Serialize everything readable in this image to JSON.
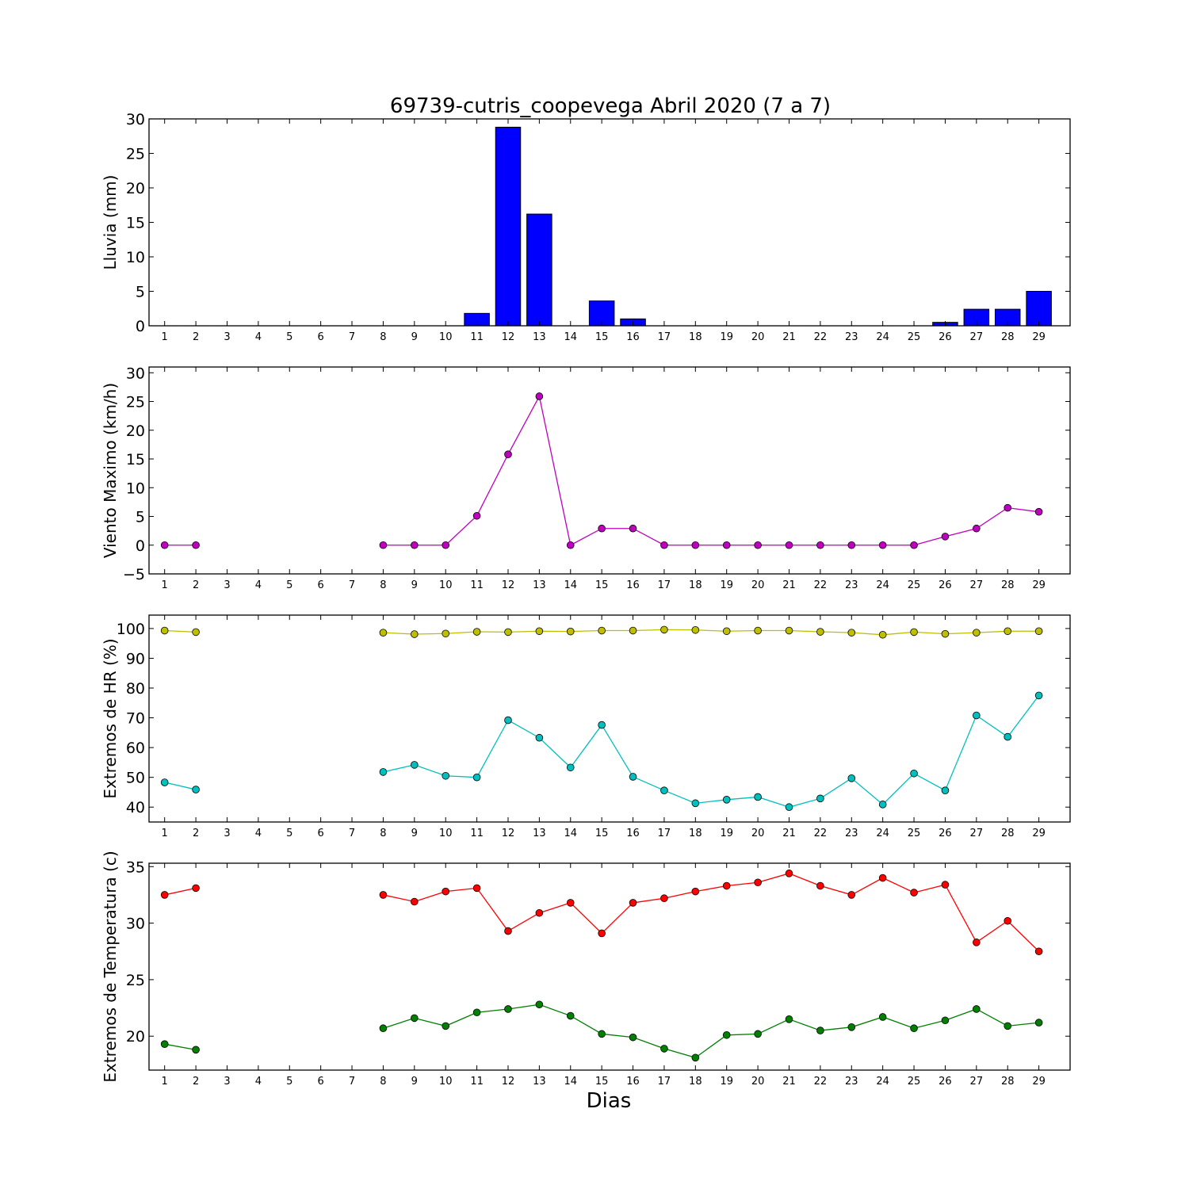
{
  "title": "69739-cutris_coopevega Abril 2020  (7 a 7)",
  "xlabel": "Dias",
  "chart_data": [
    {
      "type": "bar",
      "ylabel": "Lluvia (mm)",
      "ylim": [
        0,
        30
      ],
      "yticks": [
        0,
        5,
        10,
        15,
        20,
        25,
        30
      ],
      "categories": [
        1,
        2,
        3,
        4,
        5,
        6,
        7,
        8,
        9,
        10,
        11,
        12,
        13,
        14,
        15,
        16,
        17,
        18,
        19,
        20,
        21,
        22,
        23,
        24,
        25,
        26,
        27,
        28,
        29
      ],
      "series": [
        {
          "color": "#0000ff",
          "values": [
            0,
            0,
            0,
            0,
            0,
            0,
            0,
            0,
            0,
            0,
            1.8,
            28.8,
            16.2,
            0,
            3.6,
            1.0,
            0,
            0,
            0,
            0,
            0,
            0,
            0,
            0,
            0,
            0.5,
            2.4,
            2.4,
            5.0
          ]
        }
      ]
    },
    {
      "type": "line",
      "ylabel": "Viento Maximo (km/h)",
      "ylim": [
        -5,
        31
      ],
      "yticks": [
        -5,
        0,
        5,
        10,
        15,
        20,
        25,
        30
      ],
      "categories": [
        1,
        2,
        3,
        4,
        5,
        6,
        7,
        8,
        9,
        10,
        11,
        12,
        13,
        14,
        15,
        16,
        17,
        18,
        19,
        20,
        21,
        22,
        23,
        24,
        25,
        26,
        27,
        28,
        29
      ],
      "series": [
        {
          "color": "#bf00bf",
          "values": [
            0,
            0,
            null,
            null,
            null,
            null,
            null,
            0,
            0,
            0,
            5.1,
            15.8,
            25.9,
            0,
            2.9,
            2.9,
            0,
            0,
            0,
            0,
            0,
            0,
            0,
            0,
            0,
            1.5,
            2.9,
            6.5,
            5.8
          ]
        }
      ]
    },
    {
      "type": "line",
      "ylabel": "Extremos de HR (%)",
      "ylim": [
        35,
        104.5
      ],
      "yticks": [
        40,
        50,
        60,
        70,
        80,
        90,
        100
      ],
      "categories": [
        1,
        2,
        3,
        4,
        5,
        6,
        7,
        8,
        9,
        10,
        11,
        12,
        13,
        14,
        15,
        16,
        17,
        18,
        19,
        20,
        21,
        22,
        23,
        24,
        25,
        26,
        27,
        28,
        29
      ],
      "series": [
        {
          "color": "#bfbf00",
          "values": [
            99.3,
            98.8,
            null,
            null,
            null,
            null,
            null,
            98.6,
            98.1,
            98.3,
            98.9,
            98.8,
            99.1,
            99.0,
            99.3,
            99.3,
            99.6,
            99.5,
            99.1,
            99.3,
            99.3,
            98.9,
            98.6,
            97.9,
            98.8,
            98.2,
            98.6,
            99.1,
            99.1
          ]
        },
        {
          "color": "#00bfbf",
          "values": [
            48.3,
            45.9,
            null,
            null,
            null,
            null,
            null,
            51.8,
            54.2,
            50.5,
            50.0,
            69.2,
            63.3,
            53.3,
            67.6,
            50.2,
            45.6,
            41.3,
            42.5,
            43.4,
            40.0,
            42.9,
            49.7,
            40.9,
            51.3,
            45.6,
            70.8,
            63.6,
            77.5
          ]
        }
      ]
    },
    {
      "type": "line",
      "ylabel": "Extremos de Temperatura (c)",
      "ylim": [
        17,
        35.3
      ],
      "yticks": [
        20,
        25,
        30,
        35
      ],
      "categories": [
        1,
        2,
        3,
        4,
        5,
        6,
        7,
        8,
        9,
        10,
        11,
        12,
        13,
        14,
        15,
        16,
        17,
        18,
        19,
        20,
        21,
        22,
        23,
        24,
        25,
        26,
        27,
        28,
        29
      ],
      "series": [
        {
          "color": "#ff0000",
          "values": [
            32.5,
            33.1,
            null,
            null,
            null,
            null,
            null,
            32.5,
            31.9,
            32.8,
            33.1,
            29.3,
            30.9,
            31.8,
            29.1,
            31.8,
            32.2,
            32.8,
            33.3,
            33.6,
            34.4,
            33.3,
            32.5,
            34.0,
            32.7,
            33.4,
            28.3,
            30.2,
            27.5
          ]
        },
        {
          "color": "#008000",
          "values": [
            19.3,
            18.8,
            null,
            null,
            null,
            null,
            null,
            20.7,
            21.6,
            20.9,
            22.1,
            22.4,
            22.8,
            21.8,
            20.2,
            19.9,
            18.9,
            18.1,
            20.1,
            20.2,
            21.5,
            20.5,
            20.8,
            21.7,
            20.7,
            21.4,
            22.4,
            20.9,
            21.2
          ]
        }
      ]
    }
  ]
}
